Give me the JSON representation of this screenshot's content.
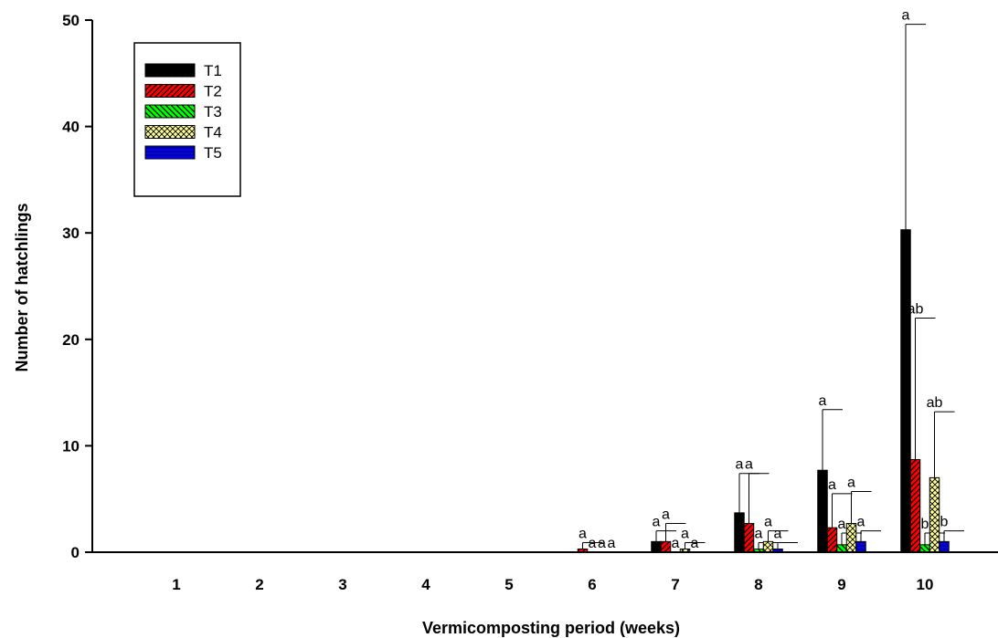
{
  "chart_data": {
    "type": "bar",
    "title": "",
    "xlabel": "Vermicomposting period (weeks)",
    "ylabel": "Number of hatchlings",
    "ylim": [
      0,
      50
    ],
    "yticks": [
      0,
      10,
      20,
      30,
      40,
      50
    ],
    "categories": [
      "1",
      "2",
      "3",
      "4",
      "5",
      "6",
      "7",
      "8",
      "9",
      "10"
    ],
    "legend_position": "top-left",
    "grid": false,
    "series": [
      {
        "name": "T1",
        "color": "#000000",
        "pattern": "solid",
        "values": [
          0,
          0,
          0,
          0,
          0,
          0,
          1,
          3.7,
          7.7,
          30.3
        ],
        "errors": [
          0,
          0,
          0,
          0,
          0,
          0,
          1,
          3.7,
          5.7,
          19.3
        ],
        "labels": [
          "",
          "",
          "",
          "",
          "",
          "",
          "a",
          "a",
          "a",
          "a"
        ]
      },
      {
        "name": "T2",
        "color": "#ff0000",
        "pattern": "diagonal",
        "values": [
          0,
          0,
          0,
          0,
          0,
          0.3,
          1,
          2.7,
          2.3,
          8.7
        ],
        "errors": [
          0,
          0,
          0,
          0,
          0,
          0.6,
          1.7,
          4.7,
          3.2,
          13.3
        ],
        "labels": [
          "",
          "",
          "",
          "",
          "",
          "a",
          "a",
          "a",
          "a",
          "ab"
        ]
      },
      {
        "name": "T3",
        "color": "#00ff00",
        "pattern": "diagonal-reverse",
        "values": [
          0,
          0,
          0,
          0,
          0,
          0,
          0,
          0.3,
          0.7,
          0.7
        ],
        "errors": [
          0,
          0,
          0,
          0,
          0,
          0,
          0,
          0.6,
          1.1,
          1.1
        ],
        "labels": [
          "",
          "",
          "",
          "",
          "",
          "a",
          "a",
          "a",
          "a",
          "b"
        ]
      },
      {
        "name": "T4",
        "color": "#ffff99",
        "pattern": "crosshatch",
        "values": [
          0,
          0,
          0,
          0,
          0,
          0,
          0.3,
          1,
          2.7,
          7
        ],
        "errors": [
          0,
          0,
          0,
          0,
          0,
          0,
          0.6,
          1,
          3,
          6.2
        ],
        "labels": [
          "",
          "",
          "",
          "",
          "",
          "a",
          "a",
          "a",
          "a",
          "ab"
        ]
      },
      {
        "name": "T5",
        "color": "#0000ff",
        "pattern": "horizontal",
        "values": [
          0,
          0,
          0,
          0,
          0,
          0,
          0,
          0.3,
          1,
          1
        ],
        "errors": [
          0,
          0,
          0,
          0,
          0,
          0,
          0,
          0.6,
          1,
          1
        ],
        "labels": [
          "",
          "",
          "",
          "",
          "",
          "a",
          "a",
          "a",
          "a",
          "b"
        ]
      }
    ]
  }
}
